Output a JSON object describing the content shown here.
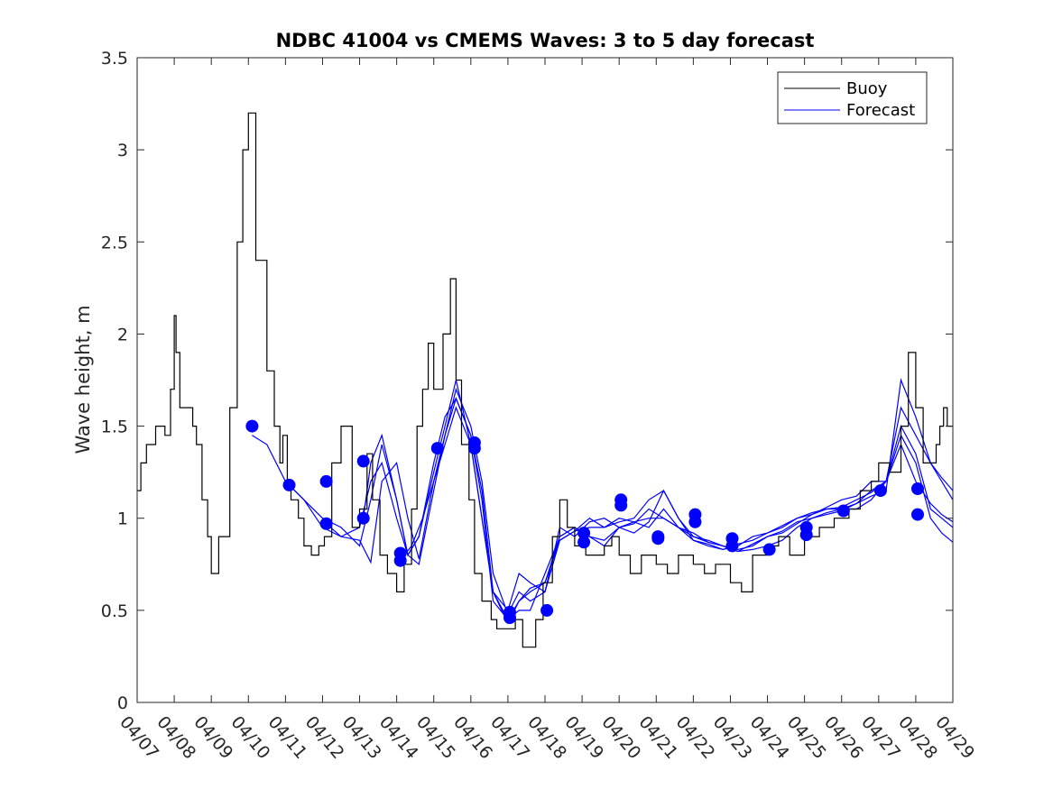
{
  "chart_data": {
    "type": "line",
    "title": "NDBC 41004 vs CMEMS Waves: 3 to 5 day forecast",
    "xlabel": "",
    "ylabel": "Wave height, m",
    "xlim": [
      "04/07",
      "04/29"
    ],
    "ylim": [
      0,
      3.5
    ],
    "yticks": [
      "0",
      "0.5",
      "1",
      "1.5",
      "2",
      "2.5",
      "3",
      "3.5"
    ],
    "xticks": [
      "04/07",
      "04/08",
      "04/09",
      "04/10",
      "04/11",
      "04/12",
      "04/13",
      "04/14",
      "04/15",
      "04/16",
      "04/17",
      "04/18",
      "04/19",
      "04/20",
      "04/21",
      "04/22",
      "04/23",
      "04/24",
      "04/25",
      "04/26",
      "04/27",
      "04/28",
      "04/29"
    ],
    "grid": false,
    "legend": {
      "position": "top-right",
      "entries": [
        "Buoy",
        "Forecast"
      ]
    },
    "colors": {
      "buoy": "#000000",
      "forecast": "#0000ff",
      "axis": "#262626"
    },
    "buoy": {
      "name": "Buoy",
      "x_day": [
        0,
        0.1,
        0.25,
        0.5,
        0.75,
        0.9,
        1.0,
        1.05,
        1.15,
        1.3,
        1.5,
        1.6,
        1.75,
        1.9,
        2.0,
        2.2,
        2.5,
        2.7,
        2.85,
        3.0,
        3.2,
        3.5,
        3.7,
        3.85,
        3.93,
        4.05,
        4.15,
        4.35,
        4.5,
        4.7,
        4.9,
        5.05,
        5.25,
        5.5,
        5.8,
        6.0,
        6.2,
        6.35,
        6.55,
        6.75,
        7.0,
        7.2,
        7.4,
        7.55,
        7.7,
        7.85,
        8.0,
        8.25,
        8.45,
        8.6,
        8.75,
        8.95,
        9.1,
        9.3,
        9.55,
        9.7,
        9.85,
        10.0,
        10.2,
        10.4,
        10.55,
        10.75,
        10.95,
        11.2,
        11.4,
        11.6,
        11.8,
        11.95,
        12.1,
        12.3,
        12.6,
        12.8,
        13.0,
        13.3,
        13.6,
        14.0,
        14.3,
        14.6,
        15.0,
        15.3,
        15.6,
        16.0,
        16.3,
        16.6,
        17.0,
        17.3,
        17.6,
        18.0,
        18.4,
        18.8,
        19.2,
        19.5,
        19.8,
        20.0,
        20.3,
        20.6,
        20.8,
        21.0,
        21.2,
        21.4,
        21.55,
        21.65,
        21.75,
        21.85,
        22.0
      ],
      "y": [
        1.15,
        1.3,
        1.4,
        1.5,
        1.45,
        1.7,
        2.1,
        1.9,
        1.6,
        1.6,
        1.5,
        1.4,
        1.1,
        0.9,
        0.7,
        0.9,
        1.6,
        2.5,
        3.0,
        3.2,
        2.4,
        1.8,
        1.5,
        1.3,
        1.45,
        1.2,
        1.1,
        1.0,
        0.85,
        0.8,
        0.85,
        0.9,
        1.3,
        1.5,
        0.95,
        1.05,
        1.35,
        1.1,
        0.8,
        0.7,
        0.6,
        0.75,
        1.05,
        1.5,
        1.7,
        1.95,
        1.7,
        2.0,
        2.3,
        1.75,
        1.4,
        1.1,
        0.7,
        0.55,
        0.45,
        0.4,
        0.4,
        0.4,
        0.45,
        0.3,
        0.3,
        0.45,
        0.65,
        0.9,
        1.1,
        0.95,
        0.85,
        0.9,
        0.8,
        0.8,
        0.85,
        0.9,
        0.8,
        0.7,
        0.8,
        0.75,
        0.7,
        0.8,
        0.75,
        0.7,
        0.75,
        0.65,
        0.6,
        0.8,
        0.85,
        0.9,
        0.8,
        0.9,
        0.95,
        1.0,
        1.05,
        1.15,
        1.2,
        1.3,
        1.25,
        1.5,
        1.9,
        1.6,
        1.3,
        1.3,
        1.4,
        1.5,
        1.6,
        1.5,
        1.5
      ]
    },
    "forecast": {
      "name": "Forecast",
      "runs": [
        {
          "x_day": [
            3.1,
            3.5,
            4.0,
            4.5,
            5.0,
            5.5,
            6.0,
            6.3,
            6.6,
            7.0,
            7.3,
            7.6,
            8.0,
            8.3,
            8.6,
            9.0,
            9.3,
            9.6,
            10.0,
            10.3,
            10.6,
            11.0,
            11.4,
            11.8,
            12.2,
            12.6,
            13.0,
            13.4,
            13.8,
            14.2,
            14.6,
            15.0,
            15.4,
            15.8,
            16.2,
            16.6,
            17.0,
            17.4,
            17.8,
            18.2,
            18.6,
            19.0,
            19.4,
            19.8,
            20.2,
            20.6,
            21.0,
            21.4,
            21.7,
            22.0
          ],
          "y": [
            1.45,
            1.4,
            1.2,
            1.1,
            1.0,
            0.95,
            0.85,
            1.1,
            1.4,
            1.1,
            0.8,
            0.9,
            1.3,
            1.55,
            1.65,
            1.45,
            1.1,
            0.55,
            0.45,
            0.5,
            0.5,
            0.7,
            0.9,
            0.95,
            0.9,
            0.85,
            0.95,
            0.98,
            1.0,
            1.0,
            0.95,
            0.92,
            0.87,
            0.85,
            0.82,
            0.83,
            0.85,
            0.88,
            0.95,
            1.0,
            1.03,
            1.05,
            1.05,
            1.1,
            1.2,
            1.6,
            1.45,
            1.3,
            1.2,
            1.1
          ]
        },
        {
          "x_day": [
            4.1,
            4.5,
            5.0,
            5.5,
            6.0,
            6.3,
            6.6,
            7.0,
            7.3,
            7.6,
            8.0,
            8.3,
            8.6,
            9.0,
            9.3,
            9.6,
            10.0,
            10.3,
            10.6,
            11.0,
            11.4,
            11.8,
            12.2,
            12.6,
            13.0,
            13.4,
            13.8,
            14.2,
            14.6,
            15.0,
            15.4,
            15.8,
            16.2,
            16.6,
            17.0,
            17.4,
            17.8,
            18.2,
            18.6,
            19.0,
            19.4,
            19.8,
            20.2,
            20.6,
            21.0,
            21.4,
            21.7,
            22.0
          ],
          "y": [
            1.18,
            1.1,
            0.95,
            0.9,
            0.95,
            1.2,
            1.3,
            1.0,
            0.8,
            0.9,
            1.25,
            1.5,
            1.75,
            1.4,
            1.0,
            0.6,
            0.5,
            0.7,
            0.65,
            0.6,
            0.95,
            0.9,
            0.98,
            1.0,
            0.95,
            0.92,
            0.98,
            1.15,
            1.0,
            0.9,
            0.88,
            0.85,
            0.83,
            0.85,
            0.9,
            0.92,
            0.97,
            1.02,
            1.05,
            1.05,
            1.08,
            1.12,
            1.15,
            1.75,
            1.55,
            1.3,
            1.22,
            1.15
          ]
        },
        {
          "x_day": [
            5.1,
            5.5,
            6.0,
            6.3,
            6.6,
            7.0,
            7.3,
            7.6,
            8.0,
            8.3,
            8.6,
            9.0,
            9.3,
            9.6,
            10.0,
            10.3,
            10.6,
            11.0,
            11.4,
            11.8,
            12.2,
            12.6,
            13.0,
            13.4,
            13.8,
            14.2,
            14.6,
            15.0,
            15.4,
            15.8,
            16.2,
            16.6,
            17.0,
            17.4,
            17.8,
            18.2,
            18.6,
            19.0,
            19.4,
            19.8,
            20.2,
            20.6,
            21.0,
            21.4,
            21.7,
            22.0
          ],
          "y": [
            0.97,
            0.9,
            0.88,
            0.76,
            1.2,
            1.3,
            1.0,
            0.78,
            1.2,
            1.45,
            1.7,
            1.5,
            1.2,
            0.7,
            0.48,
            0.6,
            0.55,
            0.6,
            0.88,
            0.93,
            0.95,
            0.95,
            1.0,
            0.98,
            0.95,
            1.05,
            0.95,
            0.9,
            0.87,
            0.85,
            0.82,
            0.86,
            0.9,
            0.93,
            0.98,
            1.0,
            1.02,
            1.04,
            1.08,
            1.15,
            1.2,
            1.5,
            1.35,
            1.05,
            1.0,
            0.95
          ]
        },
        {
          "x_day": [
            6.1,
            6.3,
            6.6,
            7.0,
            7.3,
            7.6,
            8.0,
            8.3,
            8.6,
            9.0,
            9.3,
            9.6,
            10.0,
            10.3,
            10.6,
            11.0,
            11.4,
            11.8,
            12.2,
            12.6,
            13.0,
            13.4,
            13.8,
            14.2,
            14.6,
            15.0,
            15.4,
            15.8,
            16.2,
            16.6,
            17.0,
            17.4,
            17.8,
            18.2,
            18.6,
            19.0,
            19.4,
            19.8,
            20.2,
            20.6,
            21.0,
            21.4,
            21.7,
            22.0
          ],
          "y": [
            1.0,
            1.3,
            1.45,
            1.1,
            0.8,
            0.75,
            1.15,
            1.45,
            1.65,
            1.45,
            1.15,
            0.6,
            0.45,
            0.55,
            0.6,
            0.65,
            0.9,
            0.95,
            0.9,
            0.88,
            0.95,
            0.97,
            1.05,
            1.0,
            0.95,
            0.88,
            0.86,
            0.83,
            0.85,
            0.9,
            0.92,
            0.95,
            1.0,
            1.02,
            1.06,
            1.1,
            1.12,
            1.2,
            1.2,
            1.4,
            1.2,
            1.08,
            1.02,
            0.98
          ]
        },
        {
          "x_day": [
            7.1,
            7.4,
            7.7,
            8.0,
            8.3,
            8.6,
            9.0,
            9.3,
            9.6,
            10.0,
            10.3,
            10.6,
            11.0,
            11.4,
            11.8,
            12.2,
            12.6,
            13.0,
            13.4,
            13.8,
            14.2,
            14.6,
            15.0,
            15.4,
            15.8,
            16.2,
            16.6,
            17.0,
            17.4,
            17.8,
            18.2,
            18.6,
            19.0,
            19.4,
            19.8,
            20.2,
            20.6,
            21.0,
            21.4,
            21.7,
            22.0
          ],
          "y": [
            0.77,
            0.85,
            1.0,
            1.2,
            1.4,
            1.6,
            1.4,
            1.0,
            0.6,
            0.43,
            0.55,
            0.62,
            0.65,
            0.88,
            0.93,
            1.0,
            0.95,
            0.98,
            1.0,
            1.1,
            1.15,
            1.0,
            0.88,
            0.85,
            0.83,
            0.86,
            0.88,
            0.92,
            0.96,
            1.0,
            1.03,
            1.05,
            1.06,
            1.1,
            1.14,
            1.2,
            1.45,
            1.3,
            1.0,
            0.92,
            0.87
          ]
        }
      ],
      "markers": [
        {
          "x_day": 3.1,
          "y": 1.5
        },
        {
          "x_day": 4.1,
          "y": 1.18
        },
        {
          "x_day": 5.1,
          "y": 1.2
        },
        {
          "x_day": 5.1,
          "y": 0.97
        },
        {
          "x_day": 6.1,
          "y": 1.31
        },
        {
          "x_day": 6.1,
          "y": 1.0
        },
        {
          "x_day": 7.1,
          "y": 0.81
        },
        {
          "x_day": 7.1,
          "y": 0.77
        },
        {
          "x_day": 8.1,
          "y": 1.38
        },
        {
          "x_day": 9.1,
          "y": 1.41
        },
        {
          "x_day": 9.1,
          "y": 1.38
        },
        {
          "x_day": 10.05,
          "y": 0.49
        },
        {
          "x_day": 10.05,
          "y": 0.46
        },
        {
          "x_day": 11.05,
          "y": 0.5
        },
        {
          "x_day": 12.05,
          "y": 0.92
        },
        {
          "x_day": 12.05,
          "y": 0.87
        },
        {
          "x_day": 13.05,
          "y": 1.1
        },
        {
          "x_day": 13.05,
          "y": 1.07
        },
        {
          "x_day": 14.05,
          "y": 0.9
        },
        {
          "x_day": 14.05,
          "y": 0.89
        },
        {
          "x_day": 15.05,
          "y": 1.02
        },
        {
          "x_day": 15.05,
          "y": 0.98
        },
        {
          "x_day": 16.05,
          "y": 0.89
        },
        {
          "x_day": 16.05,
          "y": 0.85
        },
        {
          "x_day": 17.05,
          "y": 0.83
        },
        {
          "x_day": 18.05,
          "y": 0.95
        },
        {
          "x_day": 18.05,
          "y": 0.91
        },
        {
          "x_day": 19.05,
          "y": 1.04
        },
        {
          "x_day": 20.05,
          "y": 1.15
        },
        {
          "x_day": 21.05,
          "y": 1.16
        },
        {
          "x_day": 21.05,
          "y": 1.02
        }
      ]
    }
  }
}
